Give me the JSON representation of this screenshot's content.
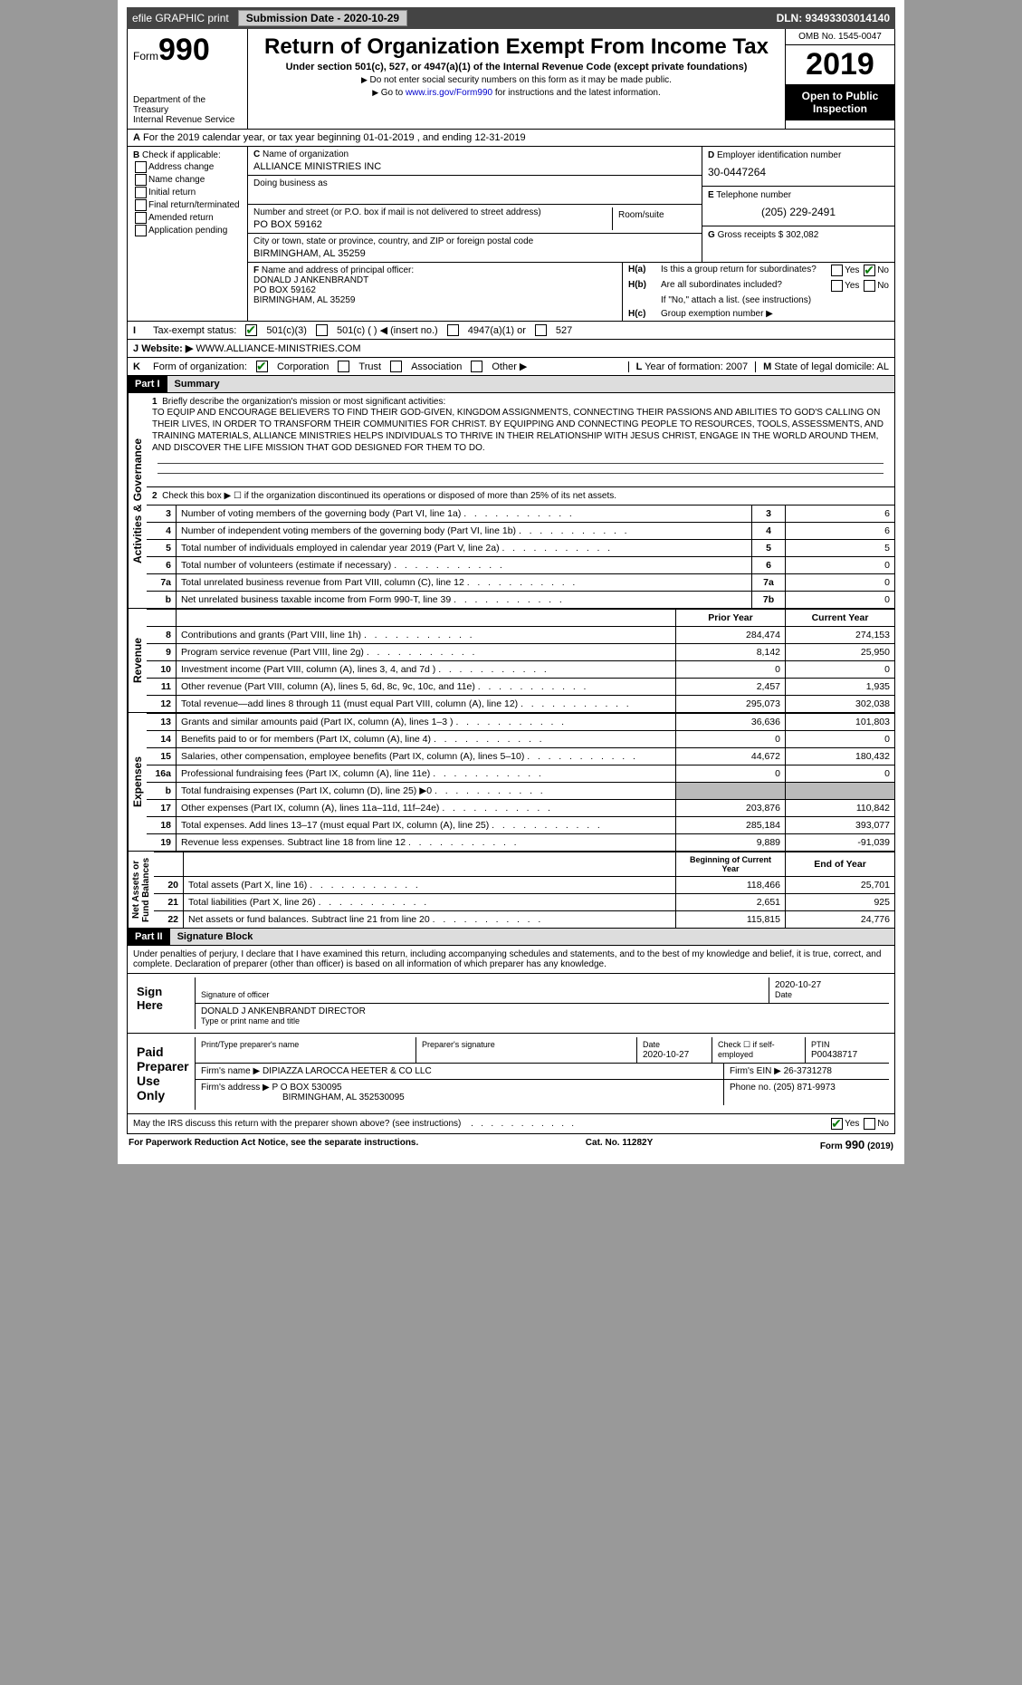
{
  "top": {
    "efile": "efile GRAPHIC print",
    "submission": "Submission Date - 2020-10-29",
    "dln": "DLN: 93493303014140"
  },
  "header": {
    "form_label": "Form",
    "form_no": "990",
    "dept": "Department of the Treasury\nInternal Revenue Service",
    "title": "Return of Organization Exempt From Income Tax",
    "subtitle": "Under section 501(c), 527, or 4947(a)(1) of the Internal Revenue Code (except private foundations)",
    "note1": "Do not enter social security numbers on this form as it may be made public.",
    "note2_pre": "Go to ",
    "note2_link": "www.irs.gov/Form990",
    "note2_post": " for instructions and the latest information.",
    "omb": "OMB No. 1545-0047",
    "year": "2019",
    "open": "Open to Public Inspection"
  },
  "a_line": {
    "text": "For the 2019 calendar year, or tax year beginning 01-01-2019   , and ending 12-31-2019"
  },
  "b": {
    "label": "Check if applicable:",
    "items": [
      "Address change",
      "Name change",
      "Initial return",
      "Final return/terminated",
      "Amended return",
      "Application pending"
    ]
  },
  "c": {
    "label": "Name of organization",
    "name": "ALLIANCE MINISTRIES INC",
    "dba_label": "Doing business as",
    "dba": "",
    "street_label": "Number and street (or P.O. box if mail is not delivered to street address)",
    "street": "PO BOX 59162",
    "room_label": "Room/suite",
    "city_label": "City or town, state or province, country, and ZIP or foreign postal code",
    "city": "BIRMINGHAM, AL  35259"
  },
  "d": {
    "label": "Employer identification number",
    "ein": "30-0447264"
  },
  "e": {
    "label": "Telephone number",
    "phone": "(205) 229-2491"
  },
  "g": {
    "label": "Gross receipts $",
    "val": "302,082"
  },
  "f": {
    "label": "Name and address of principal officer:",
    "name": "DONALD J ANKENBRANDT",
    "addr1": "PO BOX 59162",
    "addr2": "BIRMINGHAM, AL  35259"
  },
  "h": {
    "a": "Is this a group return for subordinates?",
    "b": "Are all subordinates included?",
    "b_note": "If \"No,\" attach a list. (see instructions)",
    "c": "Group exemption number ▶"
  },
  "i": {
    "label": "Tax-exempt status:",
    "opts": [
      "501(c)(3)",
      "501(c) (  ) ◀ (insert no.)",
      "4947(a)(1) or",
      "527"
    ]
  },
  "j": {
    "label": "Website: ▶",
    "val": "WWW.ALLIANCE-MINISTRIES.COM"
  },
  "k": {
    "label": "Form of organization:",
    "opts": [
      "Corporation",
      "Trust",
      "Association",
      "Other ▶"
    ]
  },
  "l": {
    "label": "Year of formation:",
    "val": "2007"
  },
  "m": {
    "label": "State of legal domicile:",
    "val": "AL"
  },
  "part1": {
    "hdr": "Part I",
    "title": "Summary"
  },
  "mission": {
    "label": "Briefly describe the organization's mission or most significant activities:",
    "text": "TO EQUIP AND ENCOURAGE BELIEVERS TO FIND THEIR GOD-GIVEN, KINGDOM ASSIGNMENTS, CONNECTING THEIR PASSIONS AND ABILITIES TO GOD'S CALLING ON THEIR LIVES, IN ORDER TO TRANSFORM THEIR COMMUNITIES FOR CHRIST. BY EQUIPPING AND CONNECTING PEOPLE TO RESOURCES, TOOLS, ASSESSMENTS, AND TRAINING MATERIALS, ALLIANCE MINISTRIES HELPS INDIVIDUALS TO THRIVE IN THEIR RELATIONSHIP WITH JESUS CHRIST, ENGAGE IN THE WORLD AROUND THEM, AND DISCOVER THE LIFE MISSION THAT GOD DESIGNED FOR THEM TO DO."
  },
  "line2": "Check this box ▶ ☐  if the organization discontinued its operations or disposed of more than 25% of its net assets.",
  "gov_tab": "Activities & Governance",
  "rev_tab": "Revenue",
  "exp_tab": "Expenses",
  "net_tab": "Net Assets or\nFund Balances",
  "gov_rows": [
    {
      "n": "3",
      "t": "Number of voting members of the governing body (Part VI, line 1a)",
      "c": "3",
      "v": "6"
    },
    {
      "n": "4",
      "t": "Number of independent voting members of the governing body (Part VI, line 1b)",
      "c": "4",
      "v": "6"
    },
    {
      "n": "5",
      "t": "Total number of individuals employed in calendar year 2019 (Part V, line 2a)",
      "c": "5",
      "v": "5"
    },
    {
      "n": "6",
      "t": "Total number of volunteers (estimate if necessary)",
      "c": "6",
      "v": "0"
    },
    {
      "n": "7a",
      "t": "Total unrelated business revenue from Part VIII, column (C), line 12",
      "c": "7a",
      "v": "0"
    },
    {
      "n": "b",
      "t": "Net unrelated business taxable income from Form 990-T, line 39",
      "c": "7b",
      "v": "0"
    }
  ],
  "py_hdr": "Prior Year",
  "cy_hdr": "Current Year",
  "rev_rows": [
    {
      "n": "8",
      "t": "Contributions and grants (Part VIII, line 1h)",
      "py": "284,474",
      "cy": "274,153"
    },
    {
      "n": "9",
      "t": "Program service revenue (Part VIII, line 2g)",
      "py": "8,142",
      "cy": "25,950"
    },
    {
      "n": "10",
      "t": "Investment income (Part VIII, column (A), lines 3, 4, and 7d )",
      "py": "0",
      "cy": "0"
    },
    {
      "n": "11",
      "t": "Other revenue (Part VIII, column (A), lines 5, 6d, 8c, 9c, 10c, and 11e)",
      "py": "2,457",
      "cy": "1,935"
    },
    {
      "n": "12",
      "t": "Total revenue—add lines 8 through 11 (must equal Part VIII, column (A), line 12)",
      "py": "295,073",
      "cy": "302,038"
    }
  ],
  "exp_rows": [
    {
      "n": "13",
      "t": "Grants and similar amounts paid (Part IX, column (A), lines 1–3 )",
      "py": "36,636",
      "cy": "101,803"
    },
    {
      "n": "14",
      "t": "Benefits paid to or for members (Part IX, column (A), line 4)",
      "py": "0",
      "cy": "0"
    },
    {
      "n": "15",
      "t": "Salaries, other compensation, employee benefits (Part IX, column (A), lines 5–10)",
      "py": "44,672",
      "cy": "180,432"
    },
    {
      "n": "16a",
      "t": "Professional fundraising fees (Part IX, column (A), line 11e)",
      "py": "0",
      "cy": "0"
    },
    {
      "n": "b",
      "t": "Total fundraising expenses (Part IX, column (D), line 25) ▶0",
      "py": "",
      "cy": "",
      "shade": true
    },
    {
      "n": "17",
      "t": "Other expenses (Part IX, column (A), lines 11a–11d, 11f–24e)",
      "py": "203,876",
      "cy": "110,842"
    },
    {
      "n": "18",
      "t": "Total expenses. Add lines 13–17 (must equal Part IX, column (A), line 25)",
      "py": "285,184",
      "cy": "393,077"
    },
    {
      "n": "19",
      "t": "Revenue less expenses. Subtract line 18 from line 12",
      "py": "9,889",
      "cy": "-91,039"
    }
  ],
  "boy_hdr": "Beginning of Current Year",
  "eoy_hdr": "End of Year",
  "net_rows": [
    {
      "n": "20",
      "t": "Total assets (Part X, line 16)",
      "py": "118,466",
      "cy": "25,701"
    },
    {
      "n": "21",
      "t": "Total liabilities (Part X, line 26)",
      "py": "2,651",
      "cy": "925"
    },
    {
      "n": "22",
      "t": "Net assets or fund balances. Subtract line 21 from line 20",
      "py": "115,815",
      "cy": "24,776"
    }
  ],
  "part2": {
    "hdr": "Part II",
    "title": "Signature Block"
  },
  "perjury": "Under penalties of perjury, I declare that I have examined this return, including accompanying schedules and statements, and to the best of my knowledge and belief, it is true, correct, and complete. Declaration of preparer (other than officer) is based on all information of which preparer has any knowledge.",
  "sign": {
    "here": "Sign\nHere",
    "sig_label": "Signature of officer",
    "date_label": "Date",
    "date": "2020-10-27",
    "name_label": "Type or print name and title",
    "name": "DONALD J ANKENBRANDT  DIRECTOR"
  },
  "paid": {
    "here": "Paid\nPreparer\nUse Only",
    "h1": "Print/Type preparer's name",
    "h2": "Preparer's signature",
    "h3": "Date",
    "date": "2020-10-27",
    "h4": "Check ☐ if self-employed",
    "h5": "PTIN",
    "ptin": "P00438717",
    "firm_l": "Firm's name    ▶",
    "firm": "DIPIAZZA LAROCCA HEETER & CO LLC",
    "ein_l": "Firm's EIN ▶",
    "ein": "26-3731278",
    "addr_l": "Firm's address ▶",
    "addr": "P O BOX 530095",
    "addr2": "BIRMINGHAM, AL  352530095",
    "phone_l": "Phone no.",
    "phone": "(205) 871-9973"
  },
  "discuss": "May the IRS discuss this return with the preparer shown above? (see instructions)",
  "foot": {
    "l": "For Paperwork Reduction Act Notice, see the separate instructions.",
    "c": "Cat. No. 11282Y",
    "r": "Form 990 (2019)"
  }
}
